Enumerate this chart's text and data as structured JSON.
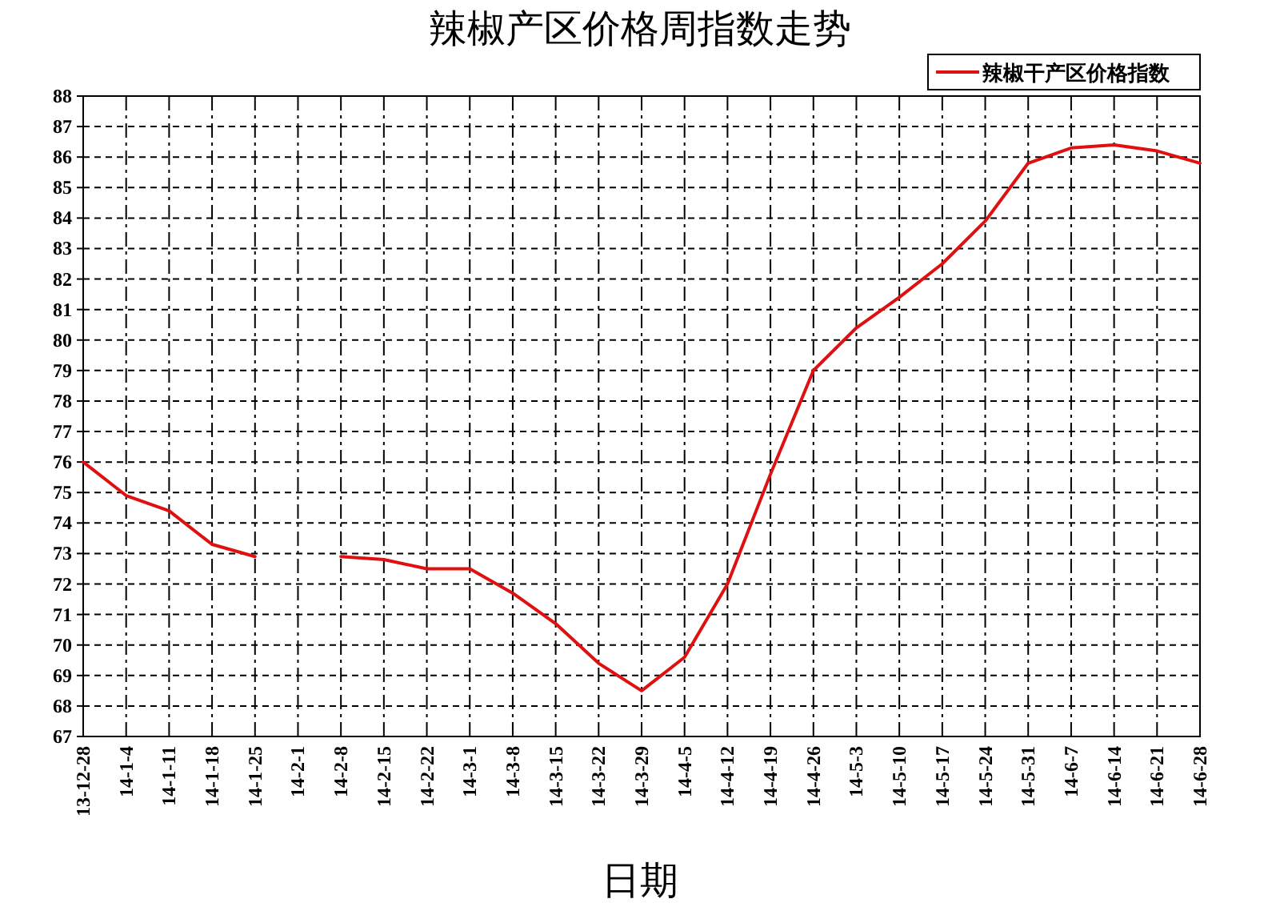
{
  "chart_data": {
    "type": "line",
    "title": "辣椒产区价格周指数走势",
    "xlabel": "日期",
    "categories": [
      "13-12-28",
      "14-1-4",
      "14-1-11",
      "14-1-18",
      "14-1-25",
      "14-2-1",
      "14-2-8",
      "14-2-15",
      "14-2-22",
      "14-3-1",
      "14-3-8",
      "14-3-15",
      "14-3-22",
      "14-3-29",
      "14-4-5",
      "14-4-12",
      "14-4-19",
      "14-4-26",
      "14-5-3",
      "14-5-10",
      "14-5-17",
      "14-5-24",
      "14-5-31",
      "14-6-7",
      "14-6-14",
      "14-6-21",
      "14-6-28"
    ],
    "series": [
      {
        "name": "辣椒干产区价格指数",
        "color": "#e01010",
        "values": [
          76.0,
          74.9,
          74.4,
          73.3,
          72.9,
          null,
          72.9,
          72.8,
          72.5,
          72.5,
          71.7,
          70.7,
          69.4,
          68.5,
          69.6,
          72.0,
          75.6,
          79.0,
          80.4,
          81.4,
          82.5,
          83.9,
          85.8,
          86.3,
          86.4,
          86.2,
          85.8
        ]
      }
    ],
    "ylim": [
      67,
      88
    ],
    "yticks": [
      67,
      68,
      69,
      70,
      71,
      72,
      73,
      74,
      75,
      76,
      77,
      78,
      79,
      80,
      81,
      82,
      83,
      84,
      85,
      86,
      87,
      88
    ],
    "grid": true,
    "legend": "top right",
    "line_style": "solid"
  }
}
